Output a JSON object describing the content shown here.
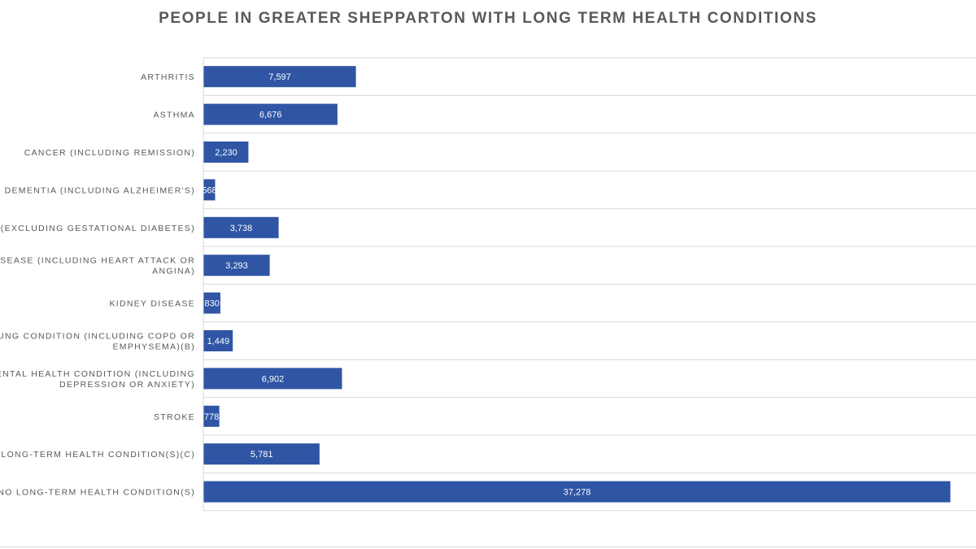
{
  "chart_data": {
    "type": "bar",
    "orientation": "horizontal",
    "title": "PEOPLE IN GREATER SHEPPARTON WITH LONG TERM HEALTH CONDITIONS",
    "categories": [
      [
        "ARTHRITIS"
      ],
      [
        "ASTHMA"
      ],
      [
        "CANCER (INCLUDING REMISSION)"
      ],
      [
        "DEMENTIA (INCLUDING ALZHEIMER'S)"
      ],
      [
        "S (EXCLUDING GESTATIONAL DIABETES)"
      ],
      [
        "DISEASE (INCLUDING HEART ATTACK OR",
        "ANGINA)"
      ],
      [
        "KIDNEY DISEASE"
      ],
      [
        "LUNG CONDITION (INCLUDING COPD OR",
        "EMPHYSEMA)(B)"
      ],
      [
        "ENTAL HEALTH CONDITION (INCLUDING",
        "DEPRESSION OR ANXIETY)"
      ],
      [
        "STROKE"
      ],
      [
        "R LONG-TERM HEALTH CONDITION(S)(C)"
      ],
      [
        "NO LONG-TERM HEALTH CONDITION(S)"
      ]
    ],
    "values": [
      7597,
      6676,
      2230,
      568,
      3738,
      3293,
      830,
      1449,
      6902,
      778,
      5781,
      37278
    ],
    "value_labels": [
      "7,597",
      "6,676",
      "2,230",
      "568",
      "3,738",
      "3,293",
      "830",
      "1,449",
      "6,902",
      "778",
      "5,781",
      "37,278"
    ],
    "xlabel": "",
    "ylabel": "",
    "xlim": [
      0,
      38000
    ],
    "bar_color": "#2f55a4",
    "grid_color": "#d9d9d9",
    "label_color": "#595959",
    "grid": "horizontal category separators",
    "legend": "none"
  }
}
